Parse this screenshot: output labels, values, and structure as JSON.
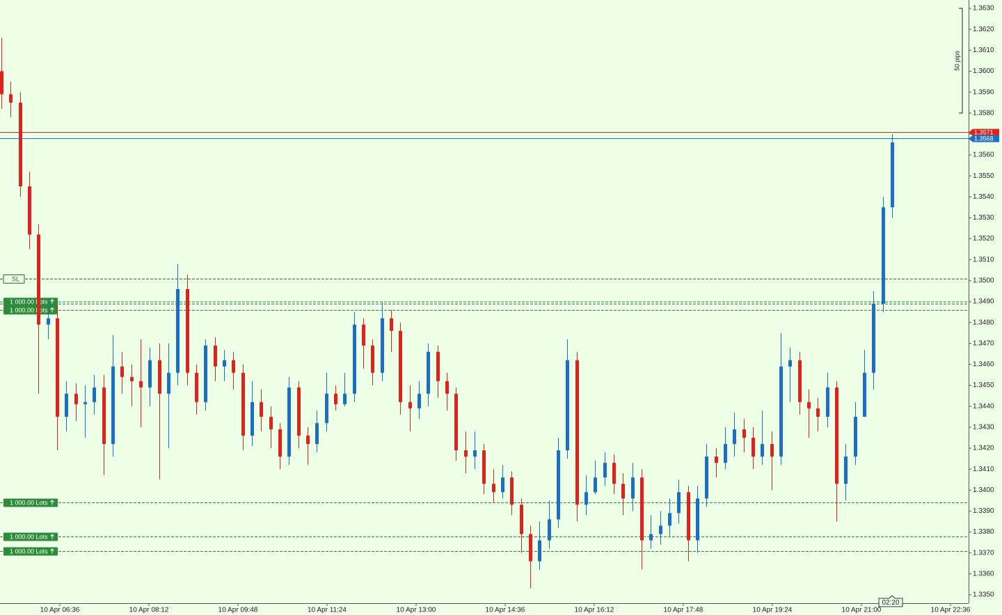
{
  "chart_data": {
    "type": "candlestick",
    "ylim": [
      1.3346,
      1.3634
    ],
    "xlim": [
      331.5,
      1375.5
    ],
    "yticks": [
      {
        "value": 1.335,
        "label": "1.3350"
      },
      {
        "value": 1.336,
        "label": "1.3360"
      },
      {
        "value": 1.337,
        "label": "1.3370"
      },
      {
        "value": 1.338,
        "label": "1.3380"
      },
      {
        "value": 1.339,
        "label": "1.3390"
      },
      {
        "value": 1.34,
        "label": "1.3400"
      },
      {
        "value": 1.341,
        "label": "1.3410"
      },
      {
        "value": 1.342,
        "label": "1.3420"
      },
      {
        "value": 1.343,
        "label": "1.3430"
      },
      {
        "value": 1.344,
        "label": "1.3440"
      },
      {
        "value": 1.345,
        "label": "1.3450"
      },
      {
        "value": 1.346,
        "label": "1.3460"
      },
      {
        "value": 1.347,
        "label": "1.3470"
      },
      {
        "value": 1.348,
        "label": "1.3480"
      },
      {
        "value": 1.349,
        "label": "1.3490"
      },
      {
        "value": 1.35,
        "label": "1.3500"
      },
      {
        "value": 1.351,
        "label": "1.3510"
      },
      {
        "value": 1.352,
        "label": "1.3520"
      },
      {
        "value": 1.353,
        "label": "1.3530"
      },
      {
        "value": 1.354,
        "label": "1.3540"
      },
      {
        "value": 1.355,
        "label": "1.3550"
      },
      {
        "value": 1.356,
        "label": "1.3560"
      },
      {
        "value": 1.357,
        "label": "1.3570"
      },
      {
        "value": 1.358,
        "label": "1.3580"
      },
      {
        "value": 1.359,
        "label": "1.3590"
      },
      {
        "value": 1.36,
        "label": "1.3600"
      },
      {
        "value": 1.361,
        "label": "1.3610"
      },
      {
        "value": 1.362,
        "label": "1.3620"
      },
      {
        "value": 1.363,
        "label": "1.3630"
      }
    ],
    "xticks": [
      {
        "value": 396,
        "label": "10 Apr 06:36"
      },
      {
        "value": 492,
        "label": "10 Apr 08:12"
      },
      {
        "value": 588,
        "label": "10 Apr 09:48"
      },
      {
        "value": 684,
        "label": "10 Apr 11:24"
      },
      {
        "value": 780,
        "label": "10 Apr 13:00"
      },
      {
        "value": 876,
        "label": "10 Apr 14:36"
      },
      {
        "value": 972,
        "label": "10 Apr 16:12"
      },
      {
        "value": 1068,
        "label": "10 Apr 17:48"
      },
      {
        "value": 1164,
        "label": "10 Apr 19:24"
      },
      {
        "value": 1260,
        "label": "10 Apr 21:00"
      },
      {
        "value": 1356,
        "label": "10 Apr 22:36"
      }
    ],
    "up_color": "#1a6fc4",
    "down_color": "#e3211c",
    "x": [
      333,
      343,
      353,
      363,
      373,
      383,
      393,
      403,
      413,
      423,
      433,
      443,
      453,
      463,
      473,
      483,
      493,
      503,
      513,
      523,
      533,
      543,
      553,
      563,
      573,
      583,
      593,
      603,
      613,
      623,
      633,
      643,
      653,
      663,
      673,
      683,
      693,
      703,
      713,
      723,
      733,
      743,
      753,
      763,
      773,
      783,
      793,
      803,
      813,
      823,
      833,
      843,
      853,
      863,
      873,
      883,
      893,
      903,
      913,
      923,
      933,
      943,
      953,
      963,
      973,
      983,
      993,
      1003,
      1013,
      1023,
      1033,
      1043,
      1053,
      1063,
      1073,
      1083,
      1093,
      1103,
      1113,
      1123,
      1133,
      1143,
      1153,
      1163,
      1173,
      1183,
      1193,
      1203,
      1213,
      1223,
      1233,
      1243,
      1253,
      1263,
      1273,
      1283,
      1293
    ],
    "open": [
      1.36,
      1.3589,
      1.3585,
      1.3545,
      1.3522,
      1.3479,
      1.3482,
      1.3435,
      1.3446,
      1.3441,
      1.3442,
      1.3449,
      1.3422,
      1.3459,
      1.3454,
      1.3452,
      1.3449,
      1.3462,
      1.3446,
      1.3456,
      1.3496,
      1.3456,
      1.3442,
      1.3469,
      1.3459,
      1.3462,
      1.3456,
      1.3426,
      1.3442,
      1.3435,
      1.3429,
      1.3416,
      1.3449,
      1.3426,
      1.3422,
      1.3432,
      1.3446,
      1.3441,
      1.3446,
      1.3479,
      1.3469,
      1.3456,
      1.3482,
      1.3476,
      1.3442,
      1.3439,
      1.3446,
      1.3466,
      1.3452,
      1.3446,
      1.3419,
      1.3416,
      1.3419,
      1.3403,
      1.3399,
      1.3406,
      1.3393,
      1.3379,
      1.3366,
      1.3376,
      1.3386,
      1.3419,
      1.3462,
      1.3393,
      1.3399,
      1.3406,
      1.3413,
      1.3403,
      1.3396,
      1.3406,
      1.3376,
      1.3379,
      1.3383,
      1.3389,
      1.3399,
      1.3376,
      1.3396,
      1.3416,
      1.3413,
      1.3422,
      1.3429,
      1.3425,
      1.3416,
      1.3422,
      1.3416,
      1.3459,
      1.3462,
      1.3442,
      1.3439,
      1.3435,
      1.3449,
      1.3403,
      1.3416,
      1.3435,
      1.3456,
      1.3489,
      1.3535
    ],
    "high": [
      1.3616,
      1.3595,
      1.359,
      1.3552,
      1.3527,
      1.349,
      1.3488,
      1.3452,
      1.3451,
      1.345,
      1.3455,
      1.3455,
      1.3474,
      1.3466,
      1.346,
      1.3472,
      1.3468,
      1.347,
      1.347,
      1.3508,
      1.3503,
      1.346,
      1.3472,
      1.3473,
      1.3467,
      1.3466,
      1.346,
      1.3452,
      1.3448,
      1.344,
      1.3432,
      1.3454,
      1.3452,
      1.343,
      1.3438,
      1.3456,
      1.345,
      1.3456,
      1.3485,
      1.3482,
      1.3472,
      1.349,
      1.3486,
      1.348,
      1.345,
      1.3452,
      1.347,
      1.3469,
      1.3456,
      1.3449,
      1.3428,
      1.3428,
      1.3422,
      1.341,
      1.3412,
      1.3409,
      1.3396,
      1.3383,
      1.3385,
      1.3395,
      1.3425,
      1.3472,
      1.3466,
      1.3407,
      1.3414,
      1.3418,
      1.3417,
      1.3408,
      1.3413,
      1.341,
      1.3388,
      1.339,
      1.3396,
      1.3405,
      1.3402,
      1.3402,
      1.3422,
      1.342,
      1.343,
      1.3437,
      1.3434,
      1.343,
      1.3438,
      1.3428,
      1.3475,
      1.3468,
      1.3466,
      1.3448,
      1.3444,
      1.3456,
      1.3452,
      1.3422,
      1.3442,
      1.3467,
      1.3495,
      1.354,
      1.357
    ],
    "low": [
      1.3582,
      1.3578,
      1.354,
      1.3515,
      1.3446,
      1.3472,
      1.3419,
      1.3428,
      1.3433,
      1.3425,
      1.3436,
      1.3407,
      1.3416,
      1.3446,
      1.344,
      1.343,
      1.344,
      1.3405,
      1.342,
      1.345,
      1.345,
      1.3436,
      1.3438,
      1.3452,
      1.3452,
      1.3448,
      1.3419,
      1.3421,
      1.3428,
      1.342,
      1.341,
      1.3412,
      1.342,
      1.3412,
      1.3418,
      1.3428,
      1.3438,
      1.344,
      1.3442,
      1.3458,
      1.345,
      1.3452,
      1.3466,
      1.3436,
      1.3428,
      1.3434,
      1.344,
      1.3444,
      1.3438,
      1.3414,
      1.3408,
      1.341,
      1.3398,
      1.3394,
      1.3396,
      1.3388,
      1.337,
      1.3353,
      1.3362,
      1.3372,
      1.3382,
      1.3415,
      1.3385,
      1.3388,
      1.3398,
      1.3402,
      1.3398,
      1.3388,
      1.339,
      1.3362,
      1.3372,
      1.3374,
      1.3378,
      1.3384,
      1.3366,
      1.337,
      1.3392,
      1.3406,
      1.341,
      1.3416,
      1.3418,
      1.341,
      1.3412,
      1.34,
      1.3412,
      1.3442,
      1.3436,
      1.3425,
      1.3428,
      1.343,
      1.3385,
      1.3395,
      1.3412,
      1.3436,
      1.3448,
      1.3485,
      1.353
    ],
    "close": [
      1.3589,
      1.3585,
      1.3545,
      1.3522,
      1.3479,
      1.3482,
      1.3435,
      1.3446,
      1.3441,
      1.3442,
      1.3449,
      1.3422,
      1.3459,
      1.3454,
      1.3452,
      1.3449,
      1.3462,
      1.3446,
      1.3456,
      1.3496,
      1.3456,
      1.3442,
      1.3469,
      1.3459,
      1.3462,
      1.3456,
      1.3426,
      1.3442,
      1.3435,
      1.3429,
      1.3416,
      1.3449,
      1.3426,
      1.3422,
      1.3432,
      1.3446,
      1.3441,
      1.3446,
      1.3479,
      1.3469,
      1.3456,
      1.3482,
      1.3476,
      1.3442,
      1.3439,
      1.3446,
      1.3466,
      1.3452,
      1.3446,
      1.3419,
      1.3416,
      1.3419,
      1.3403,
      1.3399,
      1.3406,
      1.3393,
      1.3379,
      1.3366,
      1.3376,
      1.3386,
      1.3419,
      1.3462,
      1.3393,
      1.3399,
      1.3406,
      1.3413,
      1.3403,
      1.3396,
      1.3406,
      1.3376,
      1.3379,
      1.3383,
      1.3389,
      1.3399,
      1.3376,
      1.3396,
      1.3416,
      1.3413,
      1.3422,
      1.3429,
      1.3425,
      1.3416,
      1.3422,
      1.3416,
      1.3459,
      1.3462,
      1.3442,
      1.3439,
      1.3435,
      1.3449,
      1.3403,
      1.3416,
      1.3435,
      1.3456,
      1.3489,
      1.3535,
      1.3566
    ],
    "price_lines": [
      {
        "price": 1.3571,
        "color": "#e3211c"
      },
      {
        "price": 1.3568,
        "color": "#1a6fc4"
      }
    ],
    "order_lines": [
      {
        "price": 1.3501,
        "label": "SL"
      },
      {
        "price": 1.349,
        "label": "1 000.00 Lots"
      },
      {
        "price": 1.3489
      },
      {
        "price": 1.3486,
        "label": "1 000.00 Lots"
      },
      {
        "price": 1.3394,
        "label": "1 000.00 Lots"
      },
      {
        "price": 1.3378,
        "label": "1 000.00 Lots"
      },
      {
        "price": 1.3371,
        "label": "1 000.00 Lots"
      }
    ],
    "scale_label": "50 pips",
    "scale_range": [
      1.358,
      1.363
    ],
    "countdown": "02:20"
  }
}
